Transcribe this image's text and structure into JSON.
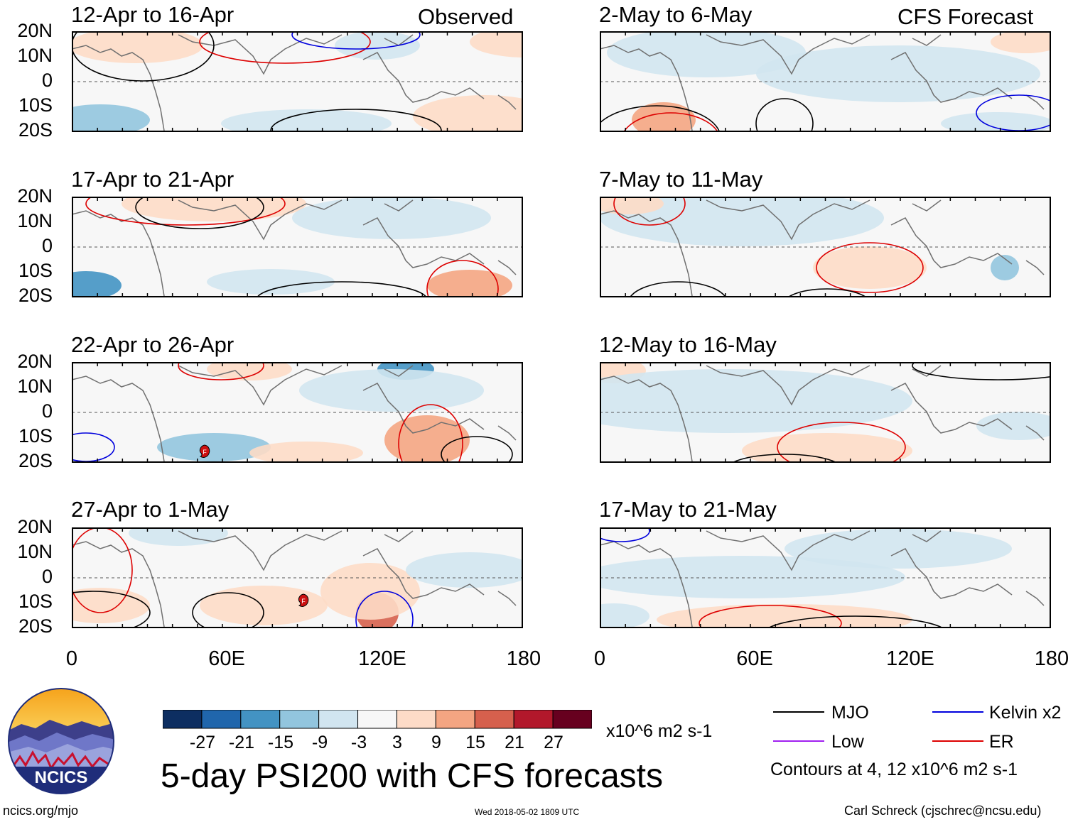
{
  "columns": [
    {
      "header_tag": "Observed",
      "panels": [
        {
          "title": "12-Apr to 16-Apr"
        },
        {
          "title": "17-Apr to 21-Apr"
        },
        {
          "title": "22-Apr to 26-Apr"
        },
        {
          "title": "27-Apr to 1-May"
        }
      ]
    },
    {
      "header_tag": "CFS Forecast",
      "panels": [
        {
          "title": "2-May to 6-May"
        },
        {
          "title": "7-May to 11-May"
        },
        {
          "title": "12-May to 16-May"
        },
        {
          "title": "17-May to 21-May"
        }
      ]
    }
  ],
  "lat_labels": [
    "20N",
    "10N",
    "0",
    "10S",
    "20S"
  ],
  "lon_labels": [
    "0",
    "60E",
    "120E",
    "180"
  ],
  "colorbar": {
    "colors": [
      "#0d2e61",
      "#2066ac",
      "#4393c3",
      "#92c5de",
      "#d1e5f0",
      "#f7f7f7",
      "#fddbc7",
      "#f4a582",
      "#d6604d",
      "#b2182b",
      "#67001f"
    ],
    "labels": [
      "-27",
      "-21",
      "-15",
      "-9",
      "-3",
      "3",
      "9",
      "15",
      "21",
      "27"
    ],
    "units": "x10^6 m2 s-1"
  },
  "title": "5-day PSI200 with CFS forecasts",
  "legend": {
    "items": [
      {
        "label": "MJO",
        "color": "#000000"
      },
      {
        "label": "Kelvin x2",
        "color": "#0000dd"
      },
      {
        "label": "Low",
        "color": "#a020f0"
      },
      {
        "label": "ER",
        "color": "#dd0000"
      }
    ],
    "note": "Contours at 4, 12 x10^6 m2 s-1"
  },
  "logo": {
    "text": "NCICS"
  },
  "footer": {
    "url": "ncics.org/mjo",
    "timestamp": "Wed 2018-05-02 1809 UTC",
    "credit": "Carl Schreck (cjschrec@ncsu.edu)"
  },
  "storm_markers": [
    {
      "panel": "22-Apr to 26-Apr",
      "label": "F"
    },
    {
      "panel": "27-Apr to 1-May",
      "label": "F"
    }
  ]
}
